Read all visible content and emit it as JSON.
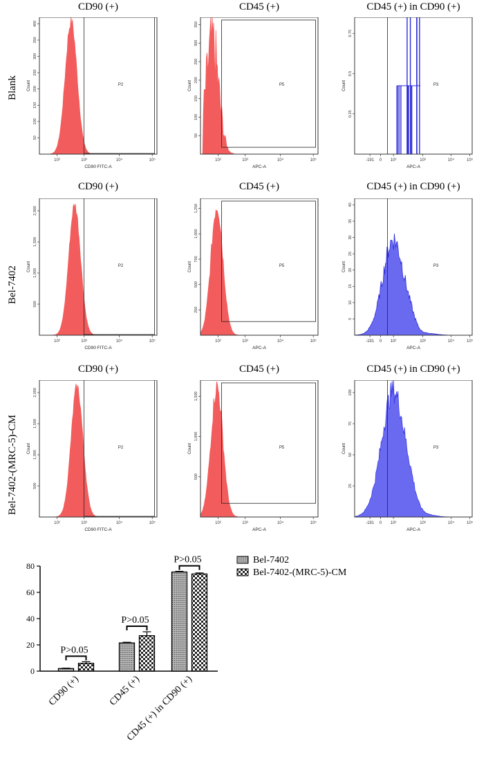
{
  "rows": [
    {
      "label": "Blank",
      "panels": [
        {
          "title": "CD90 (+)",
          "xlabel": "CD90 FITC-A",
          "ylabel": "Count",
          "gate": "P2",
          "color": "#f25c5c",
          "yticks": [
            "50",
            "100",
            "150",
            "200",
            "250",
            "300",
            "350",
            "400"
          ],
          "xticks": [
            "10²",
            "10³",
            "10⁴",
            "10⁵"
          ]
        },
        {
          "title": "CD45 (+)",
          "xlabel": "APC-A",
          "ylabel": "Count",
          "gate": "P5",
          "color": "#f25c5c",
          "yticks": [
            "50",
            "100",
            "150",
            "200",
            "250",
            "300",
            "350"
          ],
          "xticks": [
            "10²",
            "10³",
            "10⁴",
            "10⁵"
          ]
        },
        {
          "title": "CD45 (+) in  CD90 (+)",
          "xlabel": "APC-A",
          "ylabel": "Count",
          "gate": "P3",
          "color": "#2b2bd9",
          "yticks": [
            "0.25",
            "0.5",
            "0.75"
          ],
          "xticks": [
            "-191",
            "0",
            "10²",
            "10³",
            "10⁴",
            "10⁵"
          ]
        }
      ]
    },
    {
      "label": "Bel-7402",
      "panels": [
        {
          "title": "CD90 (+)",
          "xlabel": "CD90 FITC-A",
          "ylabel": "Count",
          "gate": "P2",
          "color": "#f25c5c",
          "yticks": [
            "500",
            "1,000",
            "1,500",
            "2,000"
          ],
          "xticks": [
            "10²",
            "10³",
            "10⁴",
            "10⁵"
          ]
        },
        {
          "title": "CD45 (+)",
          "xlabel": "APC-A",
          "ylabel": "Count",
          "gate": "P5",
          "color": "#f25c5c",
          "yticks": [
            "250",
            "500",
            "750",
            "1,000",
            "1,250"
          ],
          "xticks": [
            "10²",
            "10³",
            "10⁴",
            "10⁵"
          ]
        },
        {
          "title": "CD45 (+) in  CD90 (+)",
          "xlabel": "APC-A",
          "ylabel": "Count",
          "gate": "P3",
          "color": "#2b2bd9",
          "yticks": [
            "5",
            "10",
            "15",
            "20",
            "25",
            "30",
            "35",
            "40"
          ],
          "xticks": [
            "-191",
            "0",
            "10²",
            "10³",
            "10⁴",
            "10⁵"
          ]
        }
      ]
    },
    {
      "label": "Bel-7402-(MRC-5)-CM",
      "panels": [
        {
          "title": "CD90 (+)",
          "xlabel": "CD90 FITC-A",
          "ylabel": "Count",
          "gate": "P2",
          "color": "#f25c5c",
          "yticks": [
            "500",
            "1,000",
            "1,500",
            "2,000"
          ],
          "xticks": [
            "10²",
            "10³",
            "10⁴",
            "10⁵"
          ]
        },
        {
          "title": "CD45 (+)",
          "xlabel": "APC-A",
          "ylabel": "Count",
          "gate": "P5",
          "color": "#f25c5c",
          "yticks": [
            "500",
            "1,000",
            "1,500"
          ],
          "xticks": [
            "10²",
            "10³",
            "10⁴",
            "10⁵"
          ]
        },
        {
          "title": "CD45 (+) in  CD90 (+)",
          "xlabel": "APC-A",
          "ylabel": "Count",
          "gate": "P3",
          "color": "#3a3ae6",
          "yticks": [
            "25",
            "50",
            "75",
            "100"
          ],
          "xticks": [
            "-191",
            "0",
            "10²",
            "10³",
            "10⁴",
            "10⁵"
          ]
        }
      ]
    }
  ],
  "chart_data": {
    "type": "bar",
    "categories": [
      "CD90 (+)",
      "CD45 (+)",
      "CD45 (+) in CD90 (+)"
    ],
    "series": [
      {
        "name": "Bel-7402",
        "values": [
          2,
          21.5,
          75.5
        ],
        "errors": [
          0.3,
          0.5,
          0.5
        ]
      },
      {
        "name": "Bel-7402-(MRC-5)-CM",
        "values": [
          6,
          27,
          74
        ],
        "errors": [
          1.2,
          3,
          0.8
        ]
      }
    ],
    "ylim": [
      0,
      80
    ],
    "yticks": [
      0,
      20,
      40,
      60,
      80
    ],
    "annotations": [
      "P>0.05",
      "P>0.05",
      "P>0.05"
    ],
    "legend_position": "right"
  }
}
